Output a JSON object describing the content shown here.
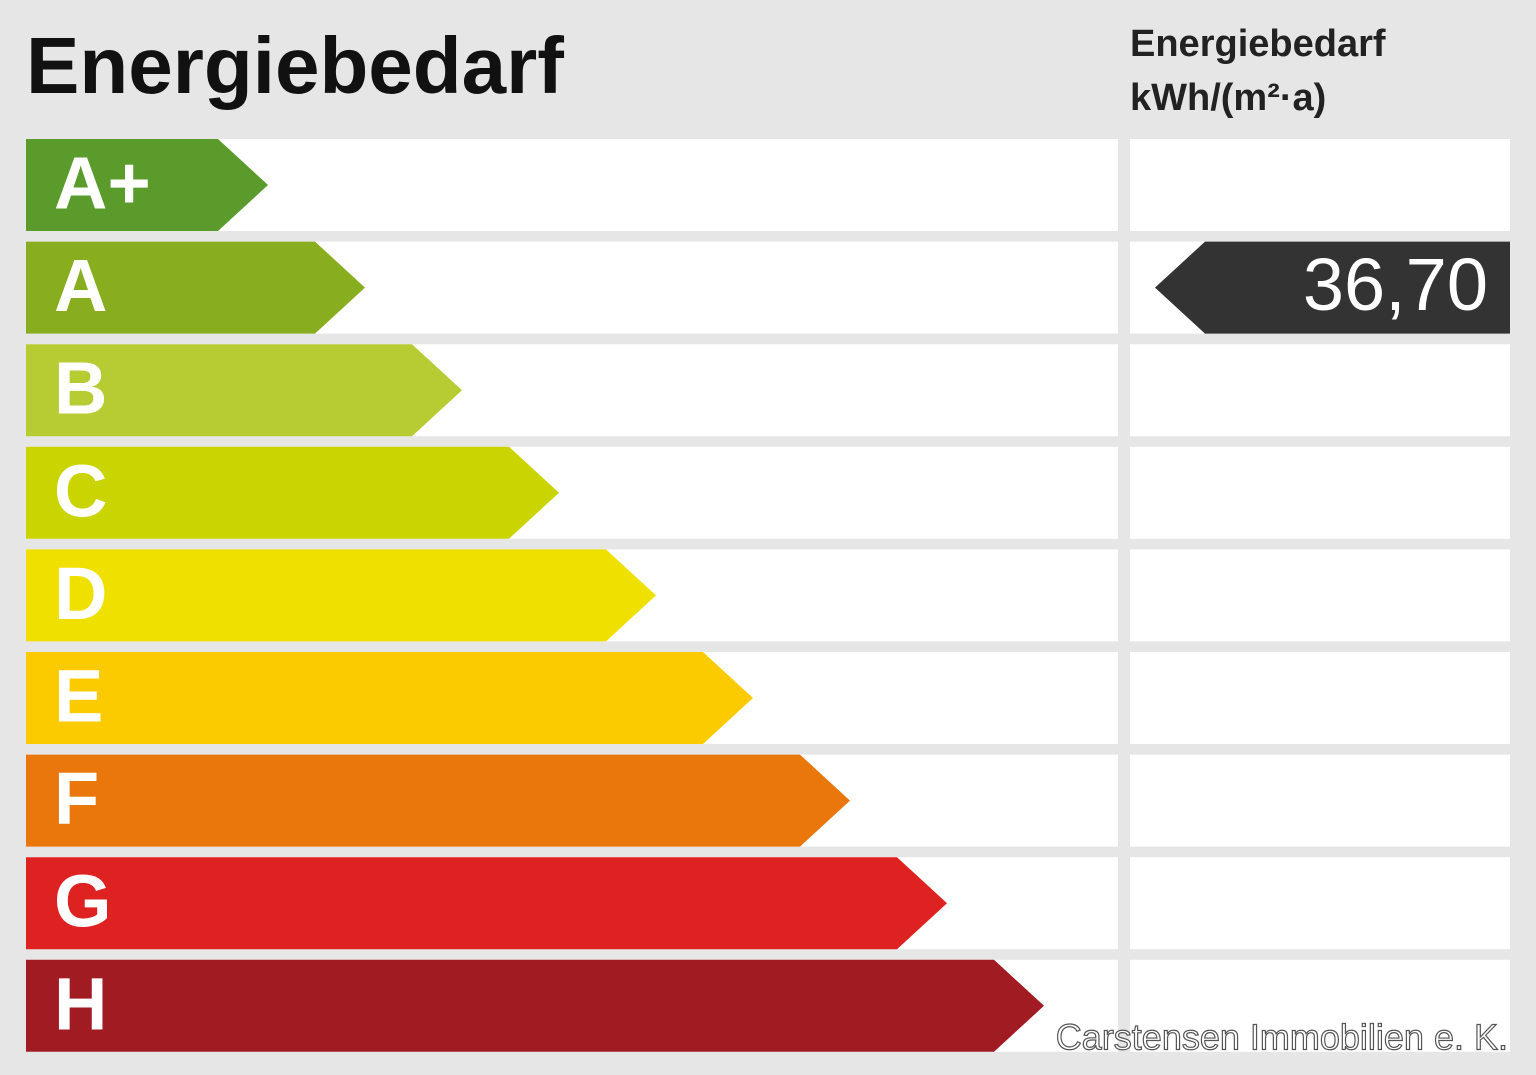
{
  "title": "Energiebedarf",
  "header": {
    "line1": "Energiebedarf",
    "line2": "kWh/(m²·a)"
  },
  "classes": [
    {
      "label": "A+",
      "color": "#5b9b2b"
    },
    {
      "label": "A",
      "color": "#88ad1f"
    },
    {
      "label": "B",
      "color": "#b7cb33"
    },
    {
      "label": "C",
      "color": "#c9d400"
    },
    {
      "label": "D",
      "color": "#efe000"
    },
    {
      "label": "E",
      "color": "#fbcb00"
    },
    {
      "label": "F",
      "color": "#e9770b"
    },
    {
      "label": "G",
      "color": "#de2121"
    },
    {
      "label": "H",
      "color": "#a01b22"
    }
  ],
  "indicator": {
    "value": "36,70",
    "class": "A",
    "color": "#333333"
  },
  "watermark": "Carstensen Immobilien e. K."
}
